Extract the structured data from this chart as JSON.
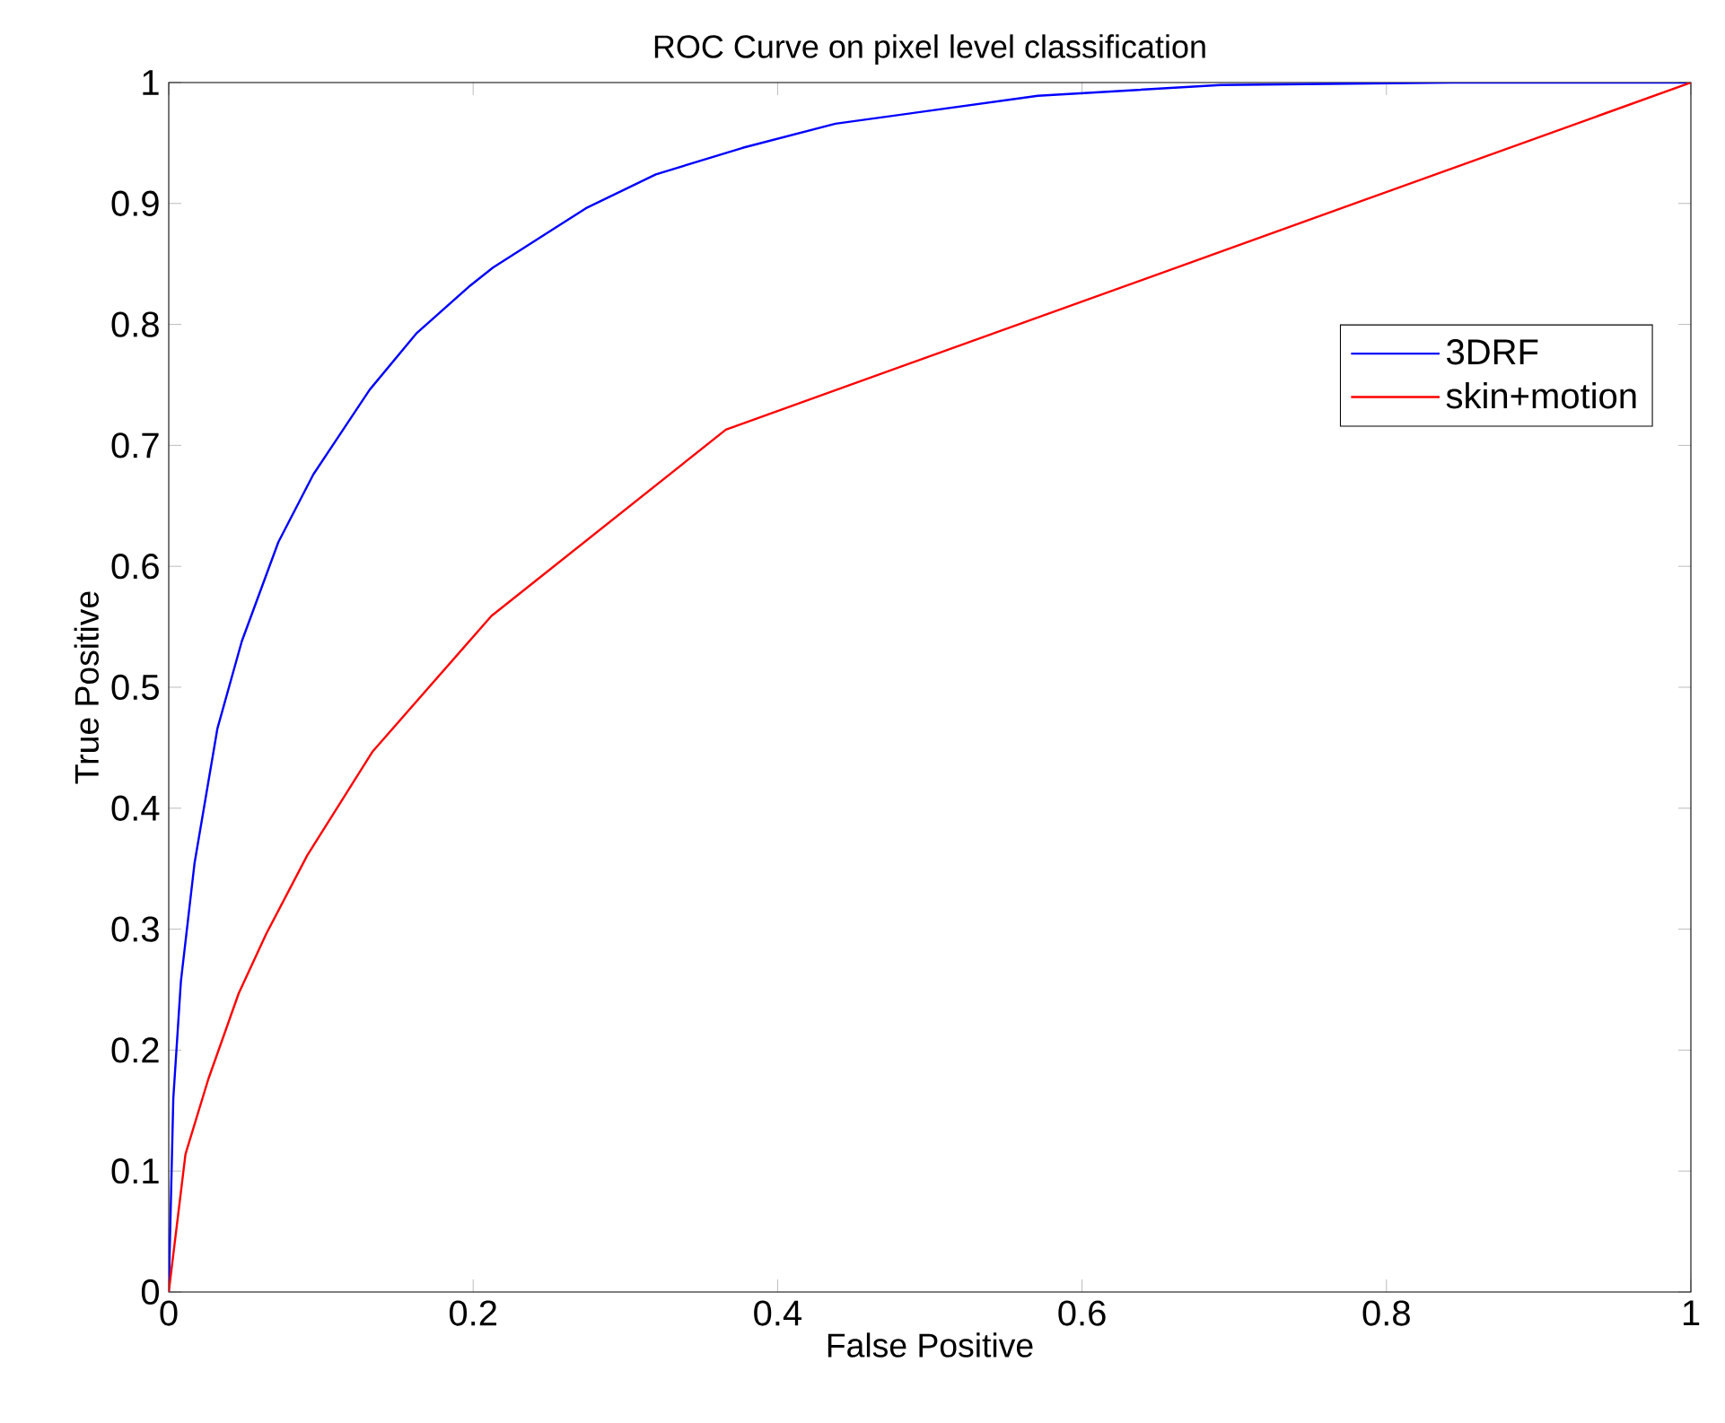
{
  "chart_data": {
    "type": "line",
    "title": "ROC Curve on pixel level classification",
    "xlabel": "False Positive",
    "ylabel": "True Positive",
    "xlim": [
      0,
      1
    ],
    "ylim": [
      0,
      1
    ],
    "xticks": [
      0,
      0.2,
      0.4,
      0.6,
      0.8,
      1
    ],
    "yticks": [
      0,
      0.1,
      0.2,
      0.3,
      0.4,
      0.5,
      0.6,
      0.7,
      0.8,
      0.9,
      1
    ],
    "grid": false,
    "legend": "right",
    "marker": "none",
    "line_style": "solid",
    "series": [
      {
        "name": "3DRF",
        "color": "#0000ff",
        "x": [
          0,
          0.003,
          0.008,
          0.017,
          0.032,
          0.048,
          0.072,
          0.095,
          0.132,
          0.163,
          0.197,
          0.213,
          0.274,
          0.32,
          0.377,
          0.438,
          0.571,
          0.691,
          0.843,
          1
        ],
        "values": [
          0,
          0.16,
          0.257,
          0.355,
          0.466,
          0.538,
          0.62,
          0.676,
          0.746,
          0.793,
          0.831,
          0.847,
          0.896,
          0.924,
          0.946,
          0.966,
          0.989,
          0.998,
          1,
          1
        ]
      },
      {
        "name": "skin+motion",
        "color": "#ff0000",
        "x": [
          0,
          0.011,
          0.026,
          0.046,
          0.064,
          0.091,
          0.134,
          0.212,
          0.366,
          1
        ],
        "values": [
          0,
          0.114,
          0.176,
          0.247,
          0.296,
          0.361,
          0.447,
          0.559,
          0.713,
          1
        ]
      }
    ]
  }
}
